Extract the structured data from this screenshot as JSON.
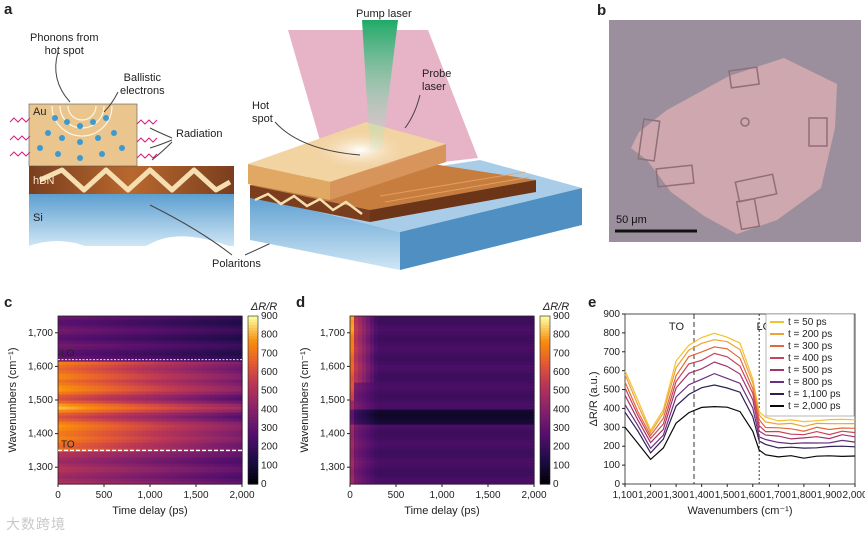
{
  "panels": {
    "a": "a",
    "b": "b",
    "c": "c",
    "d": "d",
    "e": "e"
  },
  "schematic": {
    "phonons": "Phonons from\nhot spot",
    "ballistic": "Ballistic\nelectrons",
    "radiation": "Radiation",
    "au": "Au",
    "hbn": "hBN",
    "si": "Si",
    "polaritons": "Polaritons",
    "pump": "Pump laser",
    "probe": "Probe\nlaser",
    "hotspot": "Hot\nspot"
  },
  "micrograph": {
    "scale_label": "50 μm"
  },
  "watermark": "大数跨境",
  "colors": {
    "pink_probe": "#e3a6bc",
    "green_pump": "#3bbf7e",
    "au_gold": "#eac58e",
    "si_blue": "#7eb7dc",
    "micro_bg": "#9c8f9d",
    "flake": "#cfa7ae"
  },
  "chart_data": [
    {
      "id": "c",
      "type": "heatmap",
      "xlabel": "Time delay (ps)",
      "ylabel": "Wavenumbers (cm⁻¹)",
      "xlim": [
        0,
        2000
      ],
      "ylim": [
        1250,
        1750
      ],
      "xticks": [
        "0",
        "500",
        "1,000",
        "1,500",
        "2,000"
      ],
      "yticks": [
        "1,300",
        "1,400",
        "1,500",
        "1,600",
        "1,700"
      ],
      "colorbar_label": "ΔR/R",
      "colorbar_ticks": [
        "0",
        "100",
        "200",
        "300",
        "400",
        "500",
        "600",
        "700",
        "800",
        "900"
      ],
      "annotations": [
        {
          "text": "LO",
          "y": 1620
        },
        {
          "text": "TO",
          "y": 1350
        }
      ]
    },
    {
      "id": "d",
      "type": "heatmap",
      "xlabel": "Time delay (ps)",
      "ylabel": "Wavenumbers (cm⁻¹)",
      "xlim": [
        0,
        2000
      ],
      "ylim": [
        1250,
        1750
      ],
      "xticks": [
        "0",
        "500",
        "1,000",
        "1,500",
        "2,000"
      ],
      "yticks": [
        "1,300",
        "1,400",
        "1,500",
        "1,600",
        "1,700"
      ],
      "colorbar_label": "ΔR/R",
      "colorbar_ticks": [
        "0",
        "100",
        "200",
        "300",
        "400",
        "500",
        "600",
        "700",
        "800",
        "900"
      ]
    },
    {
      "id": "e",
      "type": "line",
      "xlabel": "Wavenumbers (cm⁻¹)",
      "ylabel": "ΔR/R (a.u.)",
      "xlim": [
        1100,
        2000
      ],
      "ylim": [
        0,
        900
      ],
      "xticks": [
        "1,100",
        "1,200",
        "1,300",
        "1,400",
        "1,500",
        "1,600",
        "1,700",
        "1,800",
        "1,900",
        "2,000"
      ],
      "yticks": [
        "0",
        "100",
        "200",
        "300",
        "400",
        "500",
        "600",
        "700",
        "800",
        "900"
      ],
      "markers": [
        {
          "text": "TO",
          "x": 1370
        },
        {
          "text": "LO",
          "x": 1625
        }
      ],
      "x": [
        1100,
        1150,
        1200,
        1250,
        1300,
        1350,
        1400,
        1450,
        1500,
        1550,
        1600,
        1625,
        1650,
        1700,
        1750,
        1800,
        1850,
        1900,
        1950,
        2000
      ],
      "series": [
        {
          "name": "t = 50 ps",
          "color": "#f2c230",
          "values": [
            600,
            440,
            290,
            390,
            650,
            740,
            770,
            800,
            780,
            740,
            560,
            380,
            350,
            340,
            335,
            330,
            340,
            335,
            345,
            340
          ]
        },
        {
          "name": "t = 200 ps",
          "color": "#eea03a",
          "values": [
            580,
            420,
            275,
            370,
            620,
            710,
            740,
            770,
            750,
            710,
            540,
            360,
            330,
            320,
            315,
            310,
            320,
            315,
            325,
            320
          ]
        },
        {
          "name": "t = 300 ps",
          "color": "#e0683c",
          "values": [
            540,
            390,
            255,
            345,
            580,
            670,
            700,
            730,
            710,
            670,
            505,
            335,
            305,
            295,
            290,
            285,
            295,
            290,
            300,
            295
          ]
        },
        {
          "name": "t = 400 ps",
          "color": "#c94258",
          "values": [
            510,
            370,
            235,
            320,
            545,
            630,
            660,
            690,
            670,
            630,
            475,
            310,
            282,
            272,
            267,
            262,
            272,
            267,
            277,
            272
          ]
        },
        {
          "name": "t = 500 ps",
          "color": "#a5336b",
          "values": [
            470,
            340,
            215,
            295,
            505,
            585,
            615,
            640,
            625,
            585,
            440,
            285,
            258,
            250,
            245,
            240,
            250,
            245,
            255,
            250
          ]
        },
        {
          "name": "t = 800 ps",
          "color": "#6c2f80",
          "values": [
            420,
            305,
            190,
            262,
            455,
            530,
            555,
            580,
            565,
            530,
            400,
            255,
            230,
            222,
            217,
            212,
            222,
            217,
            227,
            222
          ]
        },
        {
          "name": "t = 1,100 ps",
          "color": "#2f1f52",
          "values": [
            380,
            275,
            170,
            235,
            410,
            480,
            505,
            525,
            512,
            480,
            360,
            228,
            205,
            197,
            192,
            188,
            197,
            193,
            202,
            197
          ]
        },
        {
          "name": "t = 2,000 ps",
          "color": "#080808",
          "values": [
            300,
            215,
            135,
            185,
            325,
            380,
            400,
            415,
            405,
            380,
            285,
            175,
            155,
            148,
            144,
            140,
            148,
            144,
            152,
            148
          ]
        }
      ]
    }
  ]
}
